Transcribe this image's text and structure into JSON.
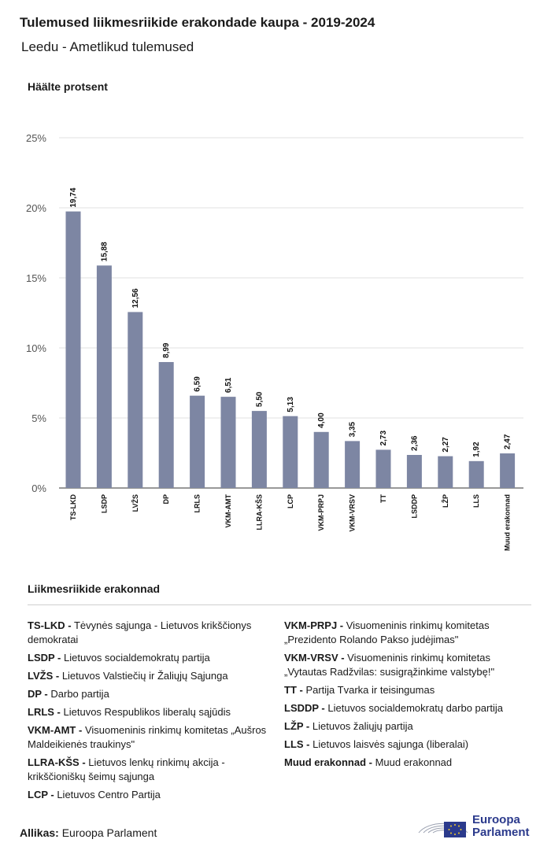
{
  "header": {
    "title": "Tulemused liikmesriikide erakondade kaupa - 2019-2024",
    "subtitle": "Leedu - Ametlikud tulemused"
  },
  "chart_data": {
    "type": "bar",
    "ylabel": "Häälte protsent",
    "ylim": [
      0,
      25
    ],
    "yticks": [
      "0%",
      "5%",
      "10%",
      "15%",
      "20%",
      "25%"
    ],
    "grid": true,
    "bar_color": "#7d86a3",
    "categories": [
      "TS-LKD",
      "LSDP",
      "LVŽS",
      "DP",
      "LRLS",
      "VKM-AMT",
      "LLRA-KŠS",
      "LCP",
      "VKM-PRPJ",
      "VKM-VRSV",
      "TT",
      "LSDDP",
      "LŽP",
      "LLS",
      "Muud erakonnad"
    ],
    "values": [
      19.74,
      15.88,
      12.56,
      8.99,
      6.59,
      6.51,
      5.5,
      5.13,
      4.0,
      3.35,
      2.73,
      2.36,
      2.27,
      1.92,
      2.47
    ],
    "value_labels": [
      "19,74",
      "15,88",
      "12,56",
      "8,99",
      "6,59",
      "6,51",
      "5,50",
      "5,13",
      "4,00",
      "3,35",
      "2,73",
      "2,36",
      "2,27",
      "1,92",
      "2,47"
    ]
  },
  "legend": {
    "title": "Liikmesriikide erakonnad",
    "left": [
      {
        "abbr": "TS-LKD -",
        "name": "Tėvynės sąjunga - Lietuvos krikščionys demokratai"
      },
      {
        "abbr": "LSDP -",
        "name": "Lietuvos socialdemokratų partija"
      },
      {
        "abbr": "LVŽS -",
        "name": "Lietuvos Valstiečių ir Žaliųjų Sąjunga"
      },
      {
        "abbr": "DP -",
        "name": "Darbo partija"
      },
      {
        "abbr": "LRLS -",
        "name": "Lietuvos Respublikos liberalų sąjūdis"
      },
      {
        "abbr": "VKM-AMT -",
        "name": "Visuomeninis rinkimų komitetas „Aušros Maldeikienės traukinys\""
      },
      {
        "abbr": "LLRA-KŠS -",
        "name": "Lietuvos lenkų rinkimų akcija - krikščioniškų šeimų sąjunga"
      },
      {
        "abbr": "LCP -",
        "name": "Lietuvos Centro Partija"
      }
    ],
    "right": [
      {
        "abbr": "VKM-PRPJ -",
        "name": "Visuomeninis rinkimų komitetas „Prezidento Rolando Pakso judėjimas\""
      },
      {
        "abbr": "VKM-VRSV -",
        "name": "Visuomeninis rinkimų komitetas „Vytautas Radžvilas: susigrąžinkime valstybę!\""
      },
      {
        "abbr": "TT -",
        "name": "Partija Tvarka ir teisingumas"
      },
      {
        "abbr": "LSDDP -",
        "name": "Lietuvos socialdemokratų darbo partija"
      },
      {
        "abbr": "LŽP -",
        "name": "Lietuvos žaliųjų partija"
      },
      {
        "abbr": "LLS -",
        "name": "Lietuvos laisvės sąjunga (liberalai)"
      },
      {
        "abbr": "Muud erakonnad -",
        "name": "Muud erakonnad"
      }
    ]
  },
  "footer": {
    "source_label": "Allikas:",
    "source_value": "Euroopa Parlament",
    "logo_line1": "Euroopa",
    "logo_line2": "Parlament",
    "logo_color": "#2b3a8c"
  }
}
